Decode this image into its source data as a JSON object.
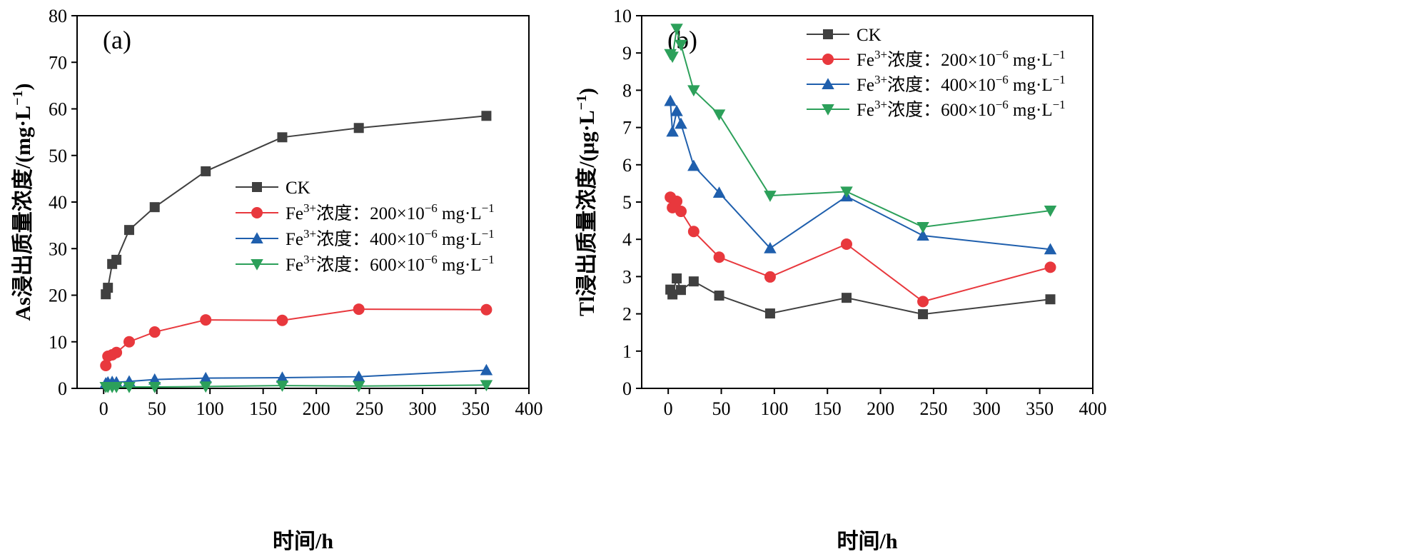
{
  "chart_data": [
    {
      "type": "line",
      "panel_label": "(a)",
      "title": "",
      "xlabel": "时间/h",
      "ylabel": "As浸出质量浓度/(mg·L⁻¹)",
      "ylabel_parts": {
        "main": "As浸出质量浓度/(mg·L",
        "sup": "−1",
        "tail": ")"
      },
      "xlim": [
        -25,
        400
      ],
      "ylim": [
        0,
        80
      ],
      "xticks": [
        0,
        50,
        100,
        150,
        200,
        250,
        300,
        350,
        400
      ],
      "yticks": [
        0,
        10,
        20,
        30,
        40,
        50,
        60,
        70,
        80
      ],
      "grid": false,
      "legend_position": "center-right",
      "x": [
        2,
        4,
        8,
        12,
        24,
        48,
        96,
        168,
        240,
        360
      ],
      "series": [
        {
          "name": "CK",
          "legend": {
            "prefix": "CK",
            "sup": "",
            "mid": "",
            "sup2": "",
            "tail": ""
          },
          "color": "#404040",
          "marker": "square",
          "values": [
            20.2,
            21.6,
            26.7,
            27.6,
            34.0,
            38.9,
            46.6,
            53.9,
            55.9,
            58.5
          ]
        },
        {
          "name": "Fe³⁺浓度：200×10⁻⁶ mg·L⁻¹",
          "legend": {
            "prefix": "Fe",
            "sup": "3+",
            "mid": "浓度：200×10",
            "sup2": "−6",
            "tail": " mg·L",
            "sup3": "−1"
          },
          "color": "#e8383d",
          "marker": "circle",
          "values": [
            4.9,
            6.9,
            7.2,
            7.7,
            10.0,
            12.1,
            14.7,
            14.6,
            17.0,
            16.9
          ]
        },
        {
          "name": "Fe³⁺浓度：400×10⁻⁶ mg·L⁻¹",
          "legend": {
            "prefix": "Fe",
            "sup": "3+",
            "mid": "浓度：400×10",
            "sup2": "−6",
            "tail": " mg·L",
            "sup3": "−1"
          },
          "color": "#1f5fad",
          "marker": "triangle-up",
          "values": [
            1.1,
            1.3,
            1.4,
            1.3,
            1.5,
            1.9,
            2.2,
            2.3,
            2.5,
            3.9
          ]
        },
        {
          "name": "Fe³⁺浓度：600×10⁻⁶ mg·L⁻¹",
          "legend": {
            "prefix": "Fe",
            "sup": "3+",
            "mid": "浓度：600×10",
            "sup2": "−6",
            "tail": " mg·L",
            "sup3": "−1"
          },
          "color": "#2ca05a",
          "marker": "triangle-down",
          "values": [
            0.3,
            0.3,
            0.3,
            0.3,
            0.3,
            0.3,
            0.4,
            0.6,
            0.5,
            0.7
          ]
        }
      ]
    },
    {
      "type": "line",
      "panel_label": "(b)",
      "title": "",
      "xlabel": "时间/h",
      "ylabel": "Tl浸出质量浓度/(μg·L⁻¹)",
      "ylabel_parts": {
        "main": "Tl浸出质量浓度/(μg·L",
        "sup": "−1",
        "tail": ")"
      },
      "xlim": [
        -25,
        400
      ],
      "ylim": [
        0,
        10
      ],
      "xticks": [
        0,
        50,
        100,
        150,
        200,
        250,
        300,
        350,
        400
      ],
      "yticks": [
        0,
        1,
        2,
        3,
        4,
        5,
        6,
        7,
        8,
        9,
        10
      ],
      "grid": false,
      "legend_position": "top-right",
      "x": [
        2,
        4,
        8,
        12,
        24,
        48,
        96,
        168,
        240,
        360
      ],
      "series": [
        {
          "name": "CK",
          "legend": {
            "prefix": "CK",
            "sup": "",
            "mid": "",
            "sup2": "",
            "tail": ""
          },
          "color": "#404040",
          "marker": "square",
          "values": [
            2.65,
            2.52,
            2.95,
            2.64,
            2.87,
            2.49,
            2.01,
            2.43,
            1.99,
            2.39
          ]
        },
        {
          "name": "Fe³⁺浓度：200×10⁻⁶ mg·L⁻¹",
          "legend": {
            "prefix": "Fe",
            "sup": "3+",
            "mid": "浓度：200×10",
            "sup2": "−6",
            "tail": " mg·L",
            "sup3": "−1"
          },
          "color": "#e8383d",
          "marker": "circle",
          "values": [
            5.13,
            4.85,
            5.02,
            4.75,
            4.21,
            3.52,
            2.99,
            3.87,
            2.33,
            3.25
          ]
        },
        {
          "name": "Fe³⁺浓度：400×10⁻⁶ mg·L⁻¹",
          "legend": {
            "prefix": "Fe",
            "sup": "3+",
            "mid": "浓度：400×10",
            "sup2": "−6",
            "tail": " mg·L",
            "sup3": "−1"
          },
          "color": "#1f5fad",
          "marker": "triangle-up",
          "values": [
            7.71,
            6.89,
            7.44,
            7.1,
            5.97,
            5.25,
            3.76,
            5.15,
            4.1,
            3.73
          ]
        },
        {
          "name": "Fe³⁺浓度：600×10⁻⁶ mg·L⁻¹",
          "legend": {
            "prefix": "Fe",
            "sup": "3+",
            "mid": "浓度：600×10",
            "sup2": "−6",
            "tail": " mg·L",
            "sup3": "−1"
          },
          "color": "#2ca05a",
          "marker": "triangle-down",
          "values": [
            8.97,
            8.9,
            9.65,
            9.22,
            8.0,
            7.35,
            5.17,
            5.28,
            4.33,
            4.77
          ]
        }
      ]
    }
  ]
}
